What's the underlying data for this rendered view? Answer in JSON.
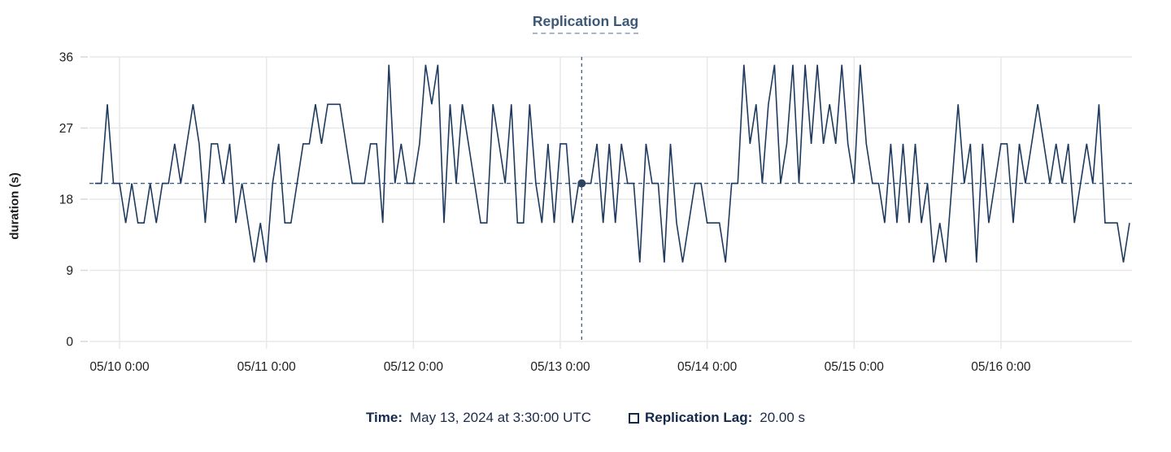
{
  "footer": {
    "time_label": "Time:",
    "time_value": "May 13, 2024 at 3:30:00 UTC",
    "series_label": "Replication Lag:",
    "series_value": "20.00 s"
  },
  "colors": {
    "line": "#1e3a5e",
    "crosshair": "#41607f",
    "crosshair_dot": "#2c4460",
    "grid": "#e8e8e8",
    "tick_mark": "#d8d8d8",
    "axis_text": "#1c1e21",
    "title": "#3d5875",
    "footer_text": "#152a4b"
  },
  "chart_data": {
    "type": "line",
    "title": "Replication Lag",
    "xlabel": "",
    "ylabel": "duration (s)",
    "legend": [
      {
        "name": "Replication Lag",
        "style": "hollow-square"
      }
    ],
    "ylim": [
      0,
      36
    ],
    "y_ticks": [
      0,
      9,
      18,
      27,
      36
    ],
    "xlim_hours": [
      -4.92,
      165.4
    ],
    "x_tick_hours": [
      0,
      24,
      48,
      72,
      96,
      120,
      144
    ],
    "x_tick_labels": [
      "05/10 0:00",
      "05/11 0:00",
      "05/12 0:00",
      "05/13 0:00",
      "05/14 0:00",
      "05/15 0:00",
      "05/16 0:00"
    ],
    "grid": true,
    "x_start_hour": -4,
    "step_hours": 1,
    "series": [
      {
        "name": "Replication Lag",
        "unit": "s",
        "values": [
          20,
          20,
          30,
          20,
          20,
          15,
          20,
          15,
          15,
          20,
          15,
          20,
          20,
          25,
          20,
          25,
          30,
          25,
          15,
          25,
          25,
          20,
          25,
          15,
          20,
          15,
          10,
          15,
          10,
          20,
          25,
          15,
          15,
          20,
          25,
          25,
          30,
          25,
          30,
          30,
          30,
          25,
          20,
          20,
          20,
          25,
          25,
          15,
          35,
          20,
          25,
          20,
          20,
          25,
          35,
          30,
          35,
          15,
          30,
          20,
          30,
          25,
          20,
          15,
          15,
          30,
          25,
          20,
          30,
          15,
          15,
          30,
          20,
          15,
          25,
          15,
          25,
          25,
          15,
          20,
          20,
          20,
          25,
          15,
          25,
          15,
          25,
          20,
          20,
          10,
          25,
          20,
          20,
          10,
          25,
          15,
          10,
          15,
          20,
          20,
          15,
          15,
          15,
          10,
          20,
          20,
          35,
          25,
          30,
          20,
          30,
          35,
          20,
          25,
          35,
          20,
          35,
          25,
          35,
          25,
          30,
          25,
          35,
          25,
          20,
          35,
          25,
          20,
          20,
          15,
          25,
          15,
          25,
          15,
          25,
          15,
          20,
          10,
          15,
          10,
          20,
          30,
          20,
          25,
          10,
          25,
          15,
          20,
          25,
          25,
          15,
          25,
          20,
          25,
          30,
          25,
          20,
          25,
          20,
          25,
          15,
          20,
          25,
          20,
          30,
          15,
          15,
          15,
          10,
          15
        ]
      }
    ],
    "crosshair": {
      "x_hour": 75.5,
      "value": 20,
      "time_label": "May 13, 2024 at 3:30:00 UTC",
      "value_label": "20.00 s"
    }
  }
}
